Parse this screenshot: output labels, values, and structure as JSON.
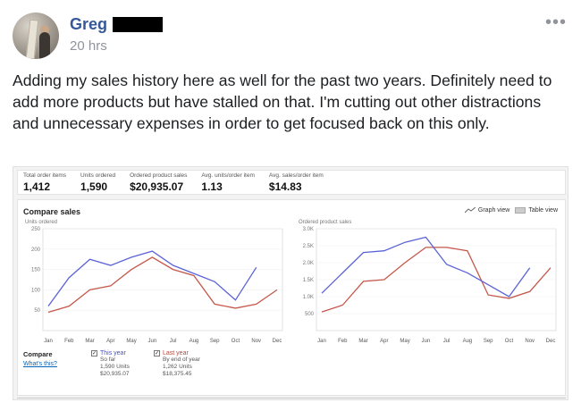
{
  "post": {
    "author": "Greg",
    "time": "20 hrs",
    "text": "Adding my sales history here as well for the past two years. Definitely need to add more products but have stalled on that. I'm cutting out other distractions and unnecessary expenses in order to get focused back on this only."
  },
  "metrics": [
    {
      "label": "Total order items",
      "value": "1,412"
    },
    {
      "label": "Units ordered",
      "value": "1,590"
    },
    {
      "label": "Ordered product sales",
      "value": "$20,935.07"
    },
    {
      "label": "Avg. units/order item",
      "value": "1.13"
    },
    {
      "label": "Avg. sales/order item",
      "value": "$14.83"
    }
  ],
  "compare": {
    "title": "Compare sales",
    "graph_view": "Graph view",
    "table_view": "Table view",
    "compare_label": "Compare",
    "whats_this": "What's this?",
    "this_year": {
      "name": "This year",
      "sub1": "So far",
      "sub2": "1,590 Units",
      "sub3": "$20,935.07"
    },
    "last_year": {
      "name": "Last year",
      "sub1": "By end of year",
      "sub2": "1,262 Units",
      "sub3": "$18,375.45"
    }
  },
  "colors": {
    "this_year": "#5b63d6",
    "last_year": "#c4584a"
  },
  "chart_data": [
    {
      "type": "line",
      "ylabel": "Units ordered",
      "ylim": [
        0,
        250
      ],
      "yticks": [
        "250",
        "200",
        "150",
        "100",
        "50"
      ],
      "ytick_values": [
        250,
        200,
        150,
        100,
        50
      ],
      "categories": [
        "Jan",
        "Feb",
        "Mar",
        "Apr",
        "May",
        "Jun",
        "Jul",
        "Aug",
        "Sep",
        "Oct",
        "Nov",
        "Dec"
      ],
      "series": [
        {
          "name": "This year",
          "values": [
            60,
            130,
            175,
            160,
            180,
            195,
            160,
            140,
            120,
            75,
            155,
            null
          ]
        },
        {
          "name": "Last year",
          "values": [
            45,
            60,
            100,
            110,
            150,
            180,
            150,
            135,
            65,
            55,
            65,
            100
          ]
        }
      ]
    },
    {
      "type": "line",
      "ylabel": "Ordered product sales",
      "ylim": [
        0,
        3000
      ],
      "yticks": [
        "3.0K",
        "2.5K",
        "2.0K",
        "1.5K",
        "1.0K",
        "500"
      ],
      "ytick_values": [
        3000,
        2500,
        2000,
        1500,
        1000,
        500
      ],
      "categories": [
        "Jan",
        "Feb",
        "Mar",
        "Apr",
        "May",
        "Jun",
        "Jul",
        "Aug",
        "Sep",
        "Oct",
        "Nov",
        "Dec"
      ],
      "series": [
        {
          "name": "This year",
          "values": [
            1100,
            1700,
            2300,
            2350,
            2600,
            2750,
            1950,
            1700,
            1350,
            1000,
            1850,
            null
          ]
        },
        {
          "name": "Last year",
          "values": [
            550,
            750,
            1450,
            1500,
            2000,
            2450,
            2450,
            2350,
            1050,
            950,
            1150,
            1850
          ]
        }
      ]
    }
  ]
}
